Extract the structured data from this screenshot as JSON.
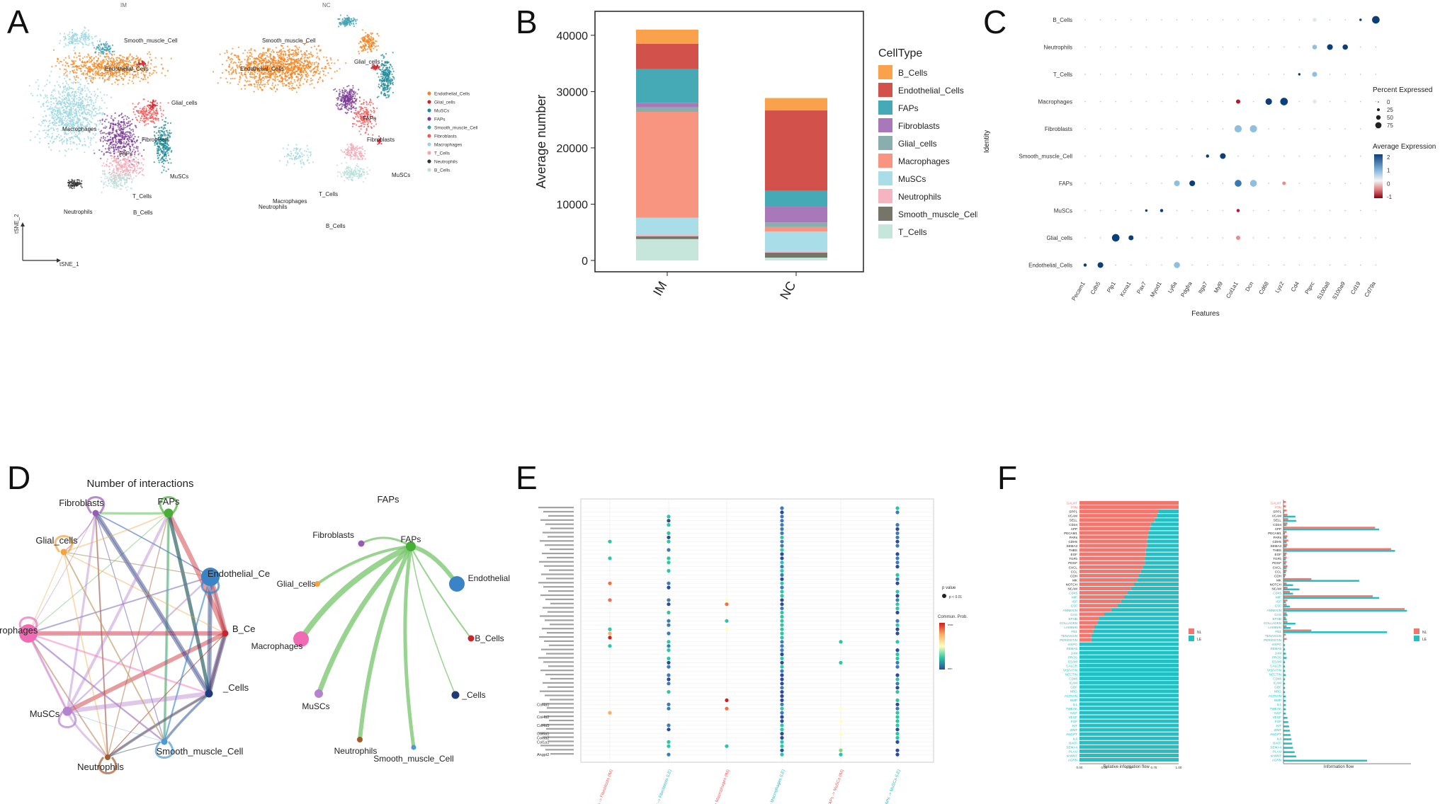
{
  "panels": {
    "A": "A",
    "B": "B",
    "C": "C",
    "D": "D",
    "E": "E",
    "F": "F"
  },
  "tsne": {
    "title_left": "IM",
    "title_right": "NC",
    "axis_x": "tSNE_1",
    "axis_y": "tSNE_2",
    "cluster_labels_left": [
      "Smooth_muscle_Cell",
      "Endothelial_Cells",
      "Glial_cells",
      "Macrophages",
      "Fibroblasts",
      "FAPs",
      "MuSCs",
      "Neutrophils",
      "T_Cells",
      "B_Cells"
    ],
    "cluster_labels_right": [
      "Smooth_muscle_Cell",
      "Endothelial_Cells",
      "Glial_cells",
      "FAPs",
      "Fibroblasts",
      "MuSCs",
      "Macrophages",
      "T_Cells",
      "Neutrophils",
      "B_Cells"
    ],
    "legend": [
      {
        "label": "Endothelial_Cells",
        "color": "#f28522"
      },
      {
        "label": "Glial_cells",
        "color": "#c9252c"
      },
      {
        "label": "MuSCs",
        "color": "#1f8a9a"
      },
      {
        "label": "FAPs",
        "color": "#7b3a96"
      },
      {
        "label": "Smooth_muscle_Cell",
        "color": "#3f9fb1"
      },
      {
        "label": "Fibroblasts",
        "color": "#ef5a5a"
      },
      {
        "label": "Macrophages",
        "color": "#9ad6e0"
      },
      {
        "label": "T_Cells",
        "color": "#f2a6b5"
      },
      {
        "label": "Neutrophils",
        "color": "#333333"
      },
      {
        "label": "B_Cells",
        "color": "#b9e0d8"
      }
    ]
  },
  "chart_data": [
    {
      "type": "bar",
      "id": "B",
      "ylabel": "Average number",
      "categories": [
        "IM",
        "NC"
      ],
      "ylim": [
        0,
        43000
      ],
      "yticks": [
        0,
        10000,
        20000,
        30000,
        40000
      ],
      "legend_title": "CellType",
      "series": [
        {
          "name": "B_Cells",
          "color": "#f9a24b",
          "values": [
            2500,
            2200
          ]
        },
        {
          "name": "Endothelial_Cells",
          "color": "#d2524b",
          "values": [
            4500,
            14300
          ]
        },
        {
          "name": "FAPs",
          "color": "#46a9b6",
          "values": [
            6000,
            2800
          ]
        },
        {
          "name": "Fibroblasts",
          "color": "#a978b8",
          "values": [
            800,
            2800
          ]
        },
        {
          "name": "Glial_cells",
          "color": "#8aaeae",
          "values": [
            800,
            800
          ]
        },
        {
          "name": "Macrophages",
          "color": "#f79581",
          "values": [
            18800,
            800
          ]
        },
        {
          "name": "MuSCs",
          "color": "#a9dde8",
          "values": [
            3000,
            3500
          ]
        },
        {
          "name": "Neutrophils",
          "color": "#f6b4c1",
          "values": [
            300,
            250
          ]
        },
        {
          "name": "Smooth_muscle_Cell",
          "color": "#75756a",
          "values": [
            500,
            900
          ]
        },
        {
          "name": "T_Cells",
          "color": "#c6e6dc",
          "values": [
            3800,
            500
          ]
        }
      ]
    },
    {
      "type": "scatter",
      "id": "C",
      "xlabel": "Features",
      "ylabel": "Identity",
      "features": [
        "Pecam1",
        "Cdh5",
        "Plp1",
        "Kcna1",
        "Pax7",
        "Myod1",
        "Ly6a",
        "Pdgfra",
        "Itga7",
        "Myl9",
        "Col1a1",
        "Dcn",
        "Cd68",
        "Lyz2",
        "Cd4",
        "Ptprc",
        "S100a8",
        "S100a9",
        "Cd19",
        "Cd79a"
      ],
      "identities": [
        "B_Cells",
        "Neutrophils",
        "T_Cells",
        "Macrophages",
        "Fibroblasts",
        "Smooth_muscle_Cell",
        "FAPs",
        "MuSCs",
        "Glial_cells",
        "Endothelial_Cells"
      ],
      "legend_size_title": "Percent Expressed",
      "size_levels": [
        0,
        25,
        50,
        75
      ],
      "legend_color_title": "Average Expression",
      "color_ticks": [
        2,
        1,
        0,
        -1
      ],
      "points": [
        {
          "i": 0,
          "f": 19,
          "p": 80,
          "e": 2.0
        },
        {
          "i": 0,
          "f": 18,
          "p": 10,
          "e": 1.5
        },
        {
          "i": 0,
          "f": 15,
          "p": 30,
          "e": 0.3
        },
        {
          "i": 1,
          "f": 16,
          "p": 55,
          "e": 2.0
        },
        {
          "i": 1,
          "f": 17,
          "p": 50,
          "e": 2.0
        },
        {
          "i": 1,
          "f": 15,
          "p": 40,
          "e": 0.7
        },
        {
          "i": 2,
          "f": 15,
          "p": 45,
          "e": 0.6
        },
        {
          "i": 2,
          "f": 14,
          "p": 10,
          "e": 1.6
        },
        {
          "i": 3,
          "f": 12,
          "p": 65,
          "e": 2.0
        },
        {
          "i": 3,
          "f": 13,
          "p": 80,
          "e": 2.0
        },
        {
          "i": 3,
          "f": 10,
          "p": 35,
          "e": -1.0
        },
        {
          "i": 3,
          "f": 15,
          "p": 30,
          "e": 0.1
        },
        {
          "i": 4,
          "f": 10,
          "p": 75,
          "e": 0.8
        },
        {
          "i": 4,
          "f": 11,
          "p": 75,
          "e": 0.8
        },
        {
          "i": 5,
          "f": 9,
          "p": 55,
          "e": 2.0
        },
        {
          "i": 5,
          "f": 8,
          "p": 20,
          "e": 1.5
        },
        {
          "i": 6,
          "f": 6,
          "p": 55,
          "e": 0.6
        },
        {
          "i": 6,
          "f": 7,
          "p": 55,
          "e": 2.0
        },
        {
          "i": 6,
          "f": 10,
          "p": 70,
          "e": 1.2
        },
        {
          "i": 6,
          "f": 11,
          "p": 70,
          "e": 0.8
        },
        {
          "i": 6,
          "f": 13,
          "p": 25,
          "e": -0.5
        },
        {
          "i": 7,
          "f": 4,
          "p": 10,
          "e": 2.0
        },
        {
          "i": 7,
          "f": 5,
          "p": 20,
          "e": 2.0
        },
        {
          "i": 7,
          "f": 10,
          "p": 20,
          "e": -0.8
        },
        {
          "i": 8,
          "f": 2,
          "p": 80,
          "e": 2.0
        },
        {
          "i": 8,
          "f": 3,
          "p": 45,
          "e": 2.0
        },
        {
          "i": 8,
          "f": 10,
          "p": 35,
          "e": -0.2
        },
        {
          "i": 9,
          "f": 0,
          "p": 20,
          "e": 2.0
        },
        {
          "i": 9,
          "f": 1,
          "p": 55,
          "e": 2.0
        },
        {
          "i": 9,
          "f": 6,
          "p": 60,
          "e": 0.6
        }
      ]
    },
    {
      "type": "scatter",
      "id": "E",
      "xlabel": "",
      "ylabel": "",
      "x_labels": [
        "FAPs -> Fibroblasts (IM)",
        "FAPs -> Fibroblasts (LE)",
        "FAPs -> Macrophages (IM)",
        "FAPs -> Macrophages (LE)",
        "FAPs -> MuSCs (IM)",
        "FAPs -> MuSCs (LE)"
      ],
      "x_label_colors": [
        "#ef5a5a",
        "#25b7c7",
        "#ef5a5a",
        "#25b7c7",
        "#ef5a5a",
        "#25b7c7"
      ],
      "visible_row_labels": [
        "Col4a1",
        "Col4a2",
        "Col4a5",
        "Col6a1",
        "Col6a2",
        "Col1a1",
        "Angpt2"
      ],
      "legend_pvalue_title": "p value",
      "legend_pvalue_item": "p < 0.01",
      "legend_color_title": "Commun. Prob.",
      "legend_color_max": "max",
      "legend_color_min": "min"
    },
    {
      "type": "bar",
      "id": "F",
      "xlabel_left": "Relative information flow",
      "xlabel_right": "Information flow",
      "x_ticks_left": [
        "0.00",
        "0.25",
        "0.50",
        "0.75",
        "1.00"
      ],
      "legend": [
        {
          "label": "NL",
          "color": "#f2766d"
        },
        {
          "label": "LE",
          "color": "#22bfc4"
        }
      ],
      "pathways": [
        "GALNT",
        "PTN",
        "SPP1",
        "VCAM",
        "SELL",
        "CD34",
        "APP",
        "PECAM1",
        "PARs",
        "CDH5",
        "SEMA3",
        "THBS",
        "EGF",
        "TGFb",
        "PDGF",
        "CXCL",
        "CCL",
        "CDH",
        "MK",
        "NOTCH",
        "NCAM",
        "CD45",
        "MIF",
        "IGF",
        "CSF",
        "ANNEXIN",
        "GAS",
        "EPHB",
        "COLLAGEN",
        "LAMININ",
        "FN1",
        "TENASCIN",
        "PERIOSTIN",
        "HSPG",
        "SEMA6",
        "JAM",
        "PROS",
        "ESAM",
        "CALCR",
        "VISFATIN",
        "NECTIN",
        "CD46",
        "ICAM",
        "GDF",
        "NRG",
        "ACTIVIN",
        "BMP",
        "IL1",
        "TWEAK",
        "NGF",
        "VEGF",
        "FGF",
        "KIT",
        "WNT",
        "ANGPT",
        "IL6",
        "BAFF",
        "SEMA4",
        "PLAU",
        "ncWNT",
        "AGRN"
      ],
      "relative_NL": [
        1.0,
        1.0,
        0.8,
        0.78,
        0.76,
        0.72,
        0.71,
        0.7,
        0.69,
        0.68,
        0.68,
        0.67,
        0.67,
        0.66,
        0.66,
        0.64,
        0.62,
        0.6,
        0.58,
        0.55,
        0.52,
        0.48,
        0.45,
        0.42,
        0.38,
        0.32,
        0.25,
        0.2,
        0.18,
        0.15,
        0.14,
        0.12,
        0.12,
        0,
        0,
        0,
        0,
        0,
        0,
        0,
        0,
        0,
        0,
        0,
        0,
        0,
        0,
        0,
        0,
        0,
        0,
        0,
        0,
        0,
        0,
        0,
        0,
        0,
        0,
        0,
        0
      ],
      "flow_NL": [
        0.3,
        0.3,
        0.4,
        0.5,
        0.6,
        0.5,
        11.5,
        0.4,
        0.5,
        0.6,
        0.5,
        13.5,
        0.4,
        0.4,
        0.4,
        0.5,
        0.4,
        0.3,
        3.5,
        0.4,
        0.5,
        0.8,
        11.2,
        0.5,
        0.4,
        15.2,
        0.4,
        0.3,
        0.5,
        0.4,
        3.5,
        0.3,
        0.4,
        0,
        0,
        0,
        0,
        0,
        0,
        0,
        0,
        0,
        0,
        0,
        0,
        0,
        0,
        0,
        0,
        0,
        0,
        0,
        0,
        0,
        0,
        0,
        0,
        0,
        0,
        0,
        0
      ],
      "flow_LE": [
        0.0,
        0.0,
        0.1,
        1.5,
        1.6,
        0.4,
        12.0,
        0.2,
        0.4,
        0.4,
        0.4,
        14.0,
        0.3,
        0.3,
        0.3,
        0.4,
        0.3,
        0.2,
        9.5,
        1.2,
        2.0,
        1.2,
        12.0,
        0.3,
        0.8,
        15.5,
        0.5,
        0.4,
        1.5,
        0.9,
        13.0,
        0.1,
        0.1,
        0.2,
        0.2,
        0.3,
        0.4,
        0.2,
        0.2,
        0.2,
        0.3,
        0.2,
        0.2,
        0.2,
        0.2,
        0.3,
        0.3,
        0.3,
        0.3,
        0.3,
        0.5,
        0.6,
        0.7,
        0.8,
        0.9,
        1.0,
        1.1,
        1.2,
        1.4,
        1.6,
        10.5
      ]
    }
  ],
  "network_D": {
    "title": "Number of interactions",
    "nodes": [
      {
        "name": "Fibroblasts",
        "color": "#9b59b6",
        "size": 9
      },
      {
        "name": "FAPs",
        "color": "#45b035",
        "size": 13
      },
      {
        "name": "Endothelial_Ce",
        "color": "#3a83c6",
        "size": 26
      },
      {
        "name": "B_Ce",
        "color": "#c9252c",
        "size": 9
      },
      {
        "name": "_Cells",
        "color": "#1f3a7a",
        "size": 11
      },
      {
        "name": "Smooth_muscle_Cell",
        "color": "#4b9ad6",
        "size": 9
      },
      {
        "name": "Neutrophils",
        "color": "#a55a2a",
        "size": 8
      },
      {
        "name": "MuSCs",
        "color": "#b582cf",
        "size": 13
      },
      {
        "name": "Macrophages",
        "color": "#f06bb3",
        "size": 26
      },
      {
        "name": "Glial_cells",
        "color": "#f3a43b",
        "size": 9
      }
    ]
  },
  "network_FAPs": {
    "title": "FAPs",
    "source": "FAPs",
    "targets": [
      "Fibroblasts",
      "Endothelial_Cells",
      "B_Cells",
      "_Cells",
      "Smooth_muscle_Cell",
      "Neutrophils",
      "MuSCs",
      "Macrophages",
      "Glial_cells"
    ]
  },
  "colors": {
    "accent_green": "#76c56a"
  }
}
